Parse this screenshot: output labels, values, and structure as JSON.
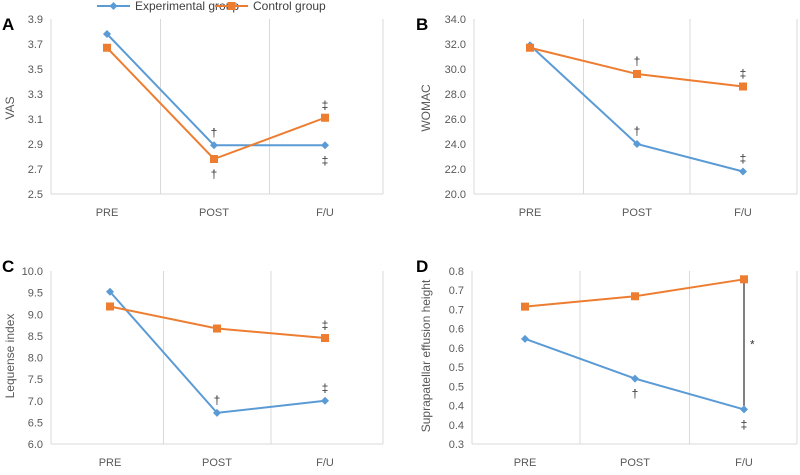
{
  "colors": {
    "experimental": "#5B9BD5",
    "control": "#ED7D31",
    "grid": "#D9D9D9"
  },
  "legend": [
    {
      "name": "Experimental group",
      "marker": "diamond",
      "color": "#5B9BD5"
    },
    {
      "name": "Control group",
      "marker": "square",
      "color": "#ED7D31"
    }
  ],
  "chart_data": [
    {
      "panel": "A",
      "type": "line",
      "title": "",
      "xlabel": "",
      "ylabel": "VAS",
      "categories": [
        "PRE",
        "POST",
        "F/U"
      ],
      "ylim": [
        2.5,
        3.9
      ],
      "yticks": [
        "3.9",
        "3.7",
        "3.5",
        "3.3",
        "3.1",
        "2.9",
        "2.7",
        "2.5"
      ],
      "series": [
        {
          "name": "Experimental group",
          "values": [
            3.78,
            2.89,
            2.89
          ]
        },
        {
          "name": "Control group",
          "values": [
            3.67,
            2.78,
            3.11
          ]
        }
      ],
      "annotations": [
        {
          "text": "†",
          "series": 0,
          "point": 1,
          "pos": "above"
        },
        {
          "text": "†",
          "series": 1,
          "point": 1,
          "pos": "below"
        },
        {
          "text": "‡",
          "series": 1,
          "point": 2,
          "pos": "above"
        },
        {
          "text": "‡",
          "series": 0,
          "point": 2,
          "pos": "below"
        }
      ]
    },
    {
      "panel": "B",
      "type": "line",
      "title": "",
      "xlabel": "",
      "ylabel": "WOMAC",
      "categories": [
        "PRE",
        "POST",
        "F/U"
      ],
      "ylim": [
        20,
        34
      ],
      "yticks": [
        "34.0",
        "32.0",
        "30.0",
        "28.0",
        "26.0",
        "24.0",
        "22.0",
        "20.0"
      ],
      "series": [
        {
          "name": "Experimental group",
          "values": [
            31.9,
            24.0,
            21.8
          ]
        },
        {
          "name": "Control group",
          "values": [
            31.7,
            29.6,
            28.6
          ]
        }
      ],
      "annotations": [
        {
          "text": "†",
          "series": 1,
          "point": 1,
          "pos": "above"
        },
        {
          "text": "‡",
          "series": 1,
          "point": 2,
          "pos": "above"
        },
        {
          "text": "†",
          "series": 0,
          "point": 1,
          "pos": "above"
        },
        {
          "text": "‡",
          "series": 0,
          "point": 2,
          "pos": "above"
        }
      ]
    },
    {
      "panel": "C",
      "type": "line",
      "title": "",
      "xlabel": "",
      "ylabel": "Lequense index",
      "categories": [
        "PRE",
        "POST",
        "F/U"
      ],
      "ylim": [
        6.0,
        10.0
      ],
      "yticks": [
        "10.0",
        "9.5",
        "9.0",
        "8.5",
        "8.0",
        "7.5",
        "7.0",
        "6.5",
        "6.0"
      ],
      "series": [
        {
          "name": "Experimental group",
          "values": [
            9.52,
            6.72,
            7.0
          ]
        },
        {
          "name": "Control group",
          "values": [
            9.18,
            8.67,
            8.45
          ]
        }
      ],
      "annotations": [
        {
          "text": "‡",
          "series": 1,
          "point": 2,
          "pos": "above"
        },
        {
          "text": "†",
          "series": 0,
          "point": 1,
          "pos": "above"
        },
        {
          "text": "‡",
          "series": 0,
          "point": 2,
          "pos": "above"
        }
      ]
    },
    {
      "panel": "D",
      "type": "line",
      "title": "",
      "xlabel": "",
      "ylabel": "Suprapatellar effusion height",
      "categories": [
        "PRE",
        "POST",
        "F/U"
      ],
      "ylim": [
        0.3,
        0.8
      ],
      "yticks": [
        "0.8",
        "0.7",
        "0.7",
        "0.6",
        "0.6",
        "0.5",
        "0.5",
        "0.4",
        "0.4",
        "0.3"
      ],
      "series": [
        {
          "name": "Experimental group",
          "values": [
            0.604,
            0.489,
            0.4
          ]
        },
        {
          "name": "Control group",
          "values": [
            0.697,
            0.727,
            0.776
          ]
        }
      ],
      "annotations": [
        {
          "text": "†",
          "series": 0,
          "point": 1,
          "pos": "below"
        },
        {
          "text": "‡",
          "series": 0,
          "point": 2,
          "pos": "below"
        }
      ],
      "bracket": {
        "point": 2,
        "text": "*"
      }
    }
  ]
}
